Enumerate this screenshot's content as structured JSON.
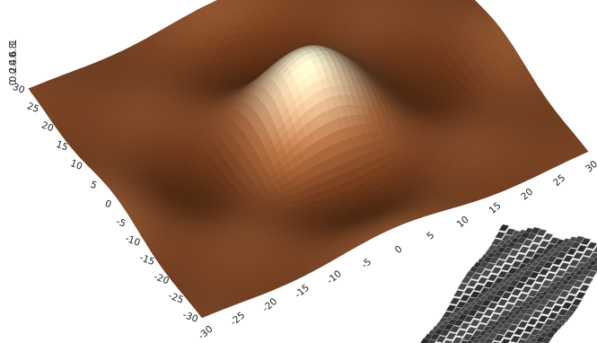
{
  "chart_data": {
    "type": "surface",
    "title": "",
    "xlabel": "",
    "ylabel": "",
    "zlabel": "",
    "xlim": [
      -30,
      30
    ],
    "ylim": [
      -30,
      30
    ],
    "x_ticks": [
      "-30",
      "-25",
      "-20",
      "-15",
      "-10",
      "-5",
      "0",
      "5",
      "10",
      "15",
      "20",
      "25",
      "30"
    ],
    "y_ticks": [
      "30",
      "25",
      "20",
      "15",
      "10",
      "5",
      "0",
      "-5",
      "-10",
      "-15",
      "-20",
      "-25",
      "-30"
    ],
    "z_ticks": [
      "1",
      "0.8",
      "0.6",
      "0.4",
      "0.2",
      "0"
    ],
    "function": "sinc(x/4) * sinc(y/4)",
    "peak": {
      "x": 0,
      "y": 0,
      "z": 1
    },
    "colormap": [
      "#3a1a08",
      "#6e3a1c",
      "#a8683e",
      "#d6b08a",
      "#f6f0cc"
    ],
    "grid": false
  }
}
